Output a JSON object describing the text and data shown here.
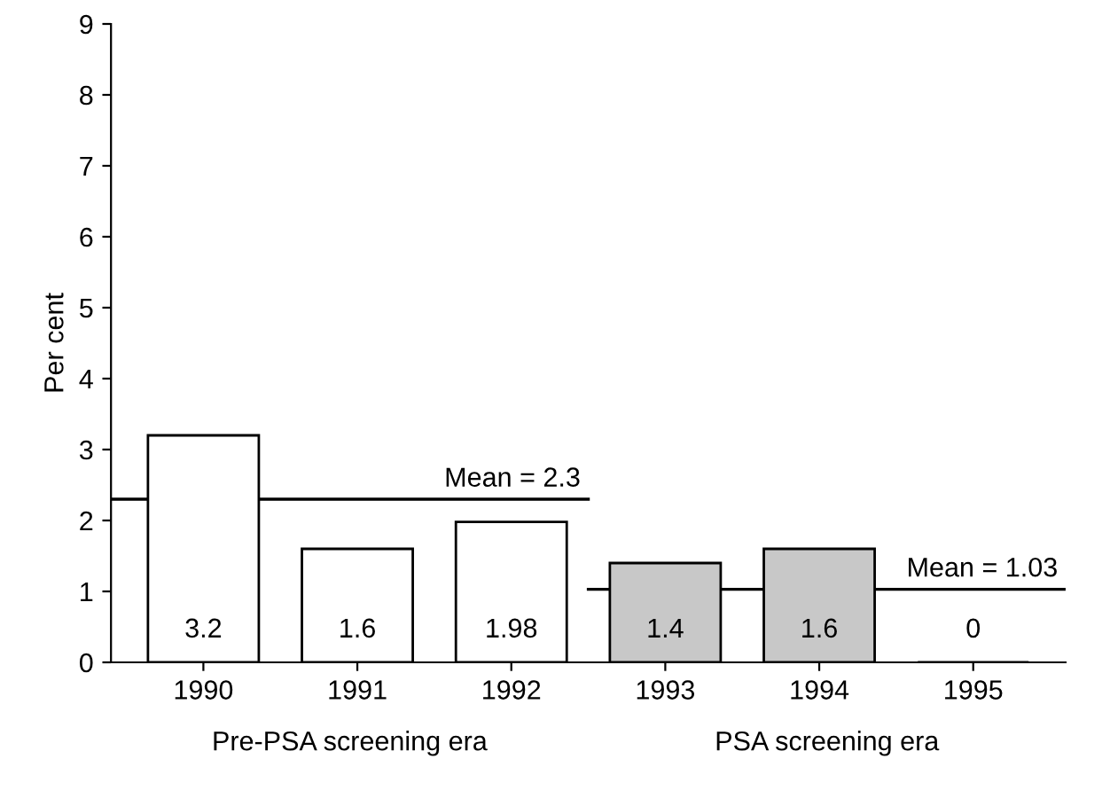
{
  "chart_data": {
    "type": "bar",
    "ylabel": "Per cent",
    "categories": [
      "1990",
      "1991",
      "1992",
      "1993",
      "1994",
      "1995"
    ],
    "values": [
      3.2,
      1.6,
      1.98,
      1.4,
      1.6,
      0
    ],
    "colors": [
      "#ffffff",
      "#ffffff",
      "#ffffff",
      "#c8c8c8",
      "#c8c8c8",
      "#000000"
    ],
    "ylim": [
      0,
      9
    ],
    "yticks": [
      0,
      1,
      2,
      3,
      4,
      5,
      6,
      7,
      8,
      9
    ],
    "data_labels": true,
    "grid": false,
    "ref_lines": [
      {
        "axis": "y",
        "value": 2.3,
        "label": "Mean = 2.3",
        "color": "#000000"
      },
      {
        "axis": "y",
        "value": 1.03,
        "label": "Mean = 1.03",
        "color": "#000000"
      }
    ],
    "annotations": [
      "Pre-PSA screening era",
      "PSA screening era"
    ]
  }
}
